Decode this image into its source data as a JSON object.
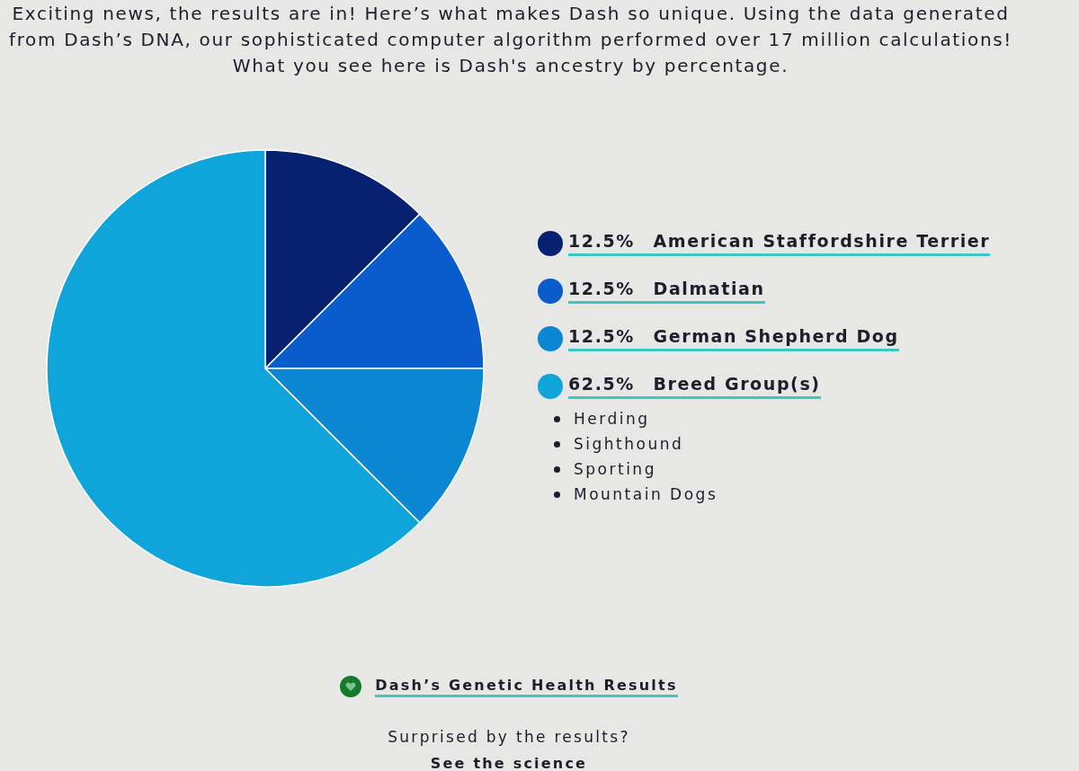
{
  "chart_data": {
    "type": "pie",
    "subtitle": "Exciting news, the results are in! Here’s what makes Dash so unique. Using the data generated from Dash’s DNA, our sophisticated computer algorithm performed over 17 million calculations!\nWhat you see here is Dash's ancestry by percentage.",
    "categories": [
      "American Staffordshire Terrier",
      "Dalmatian",
      "German Shepherd Dog",
      "Breed Group(s)"
    ],
    "values": [
      12.5,
      12.5,
      12.5,
      62.5
    ],
    "colors": [
      "#062170",
      "#0a5ccc",
      "#0a86d2",
      "#0fa5da"
    ],
    "value_labels": [
      "12.5%",
      "12.5%",
      "12.5%",
      "62.5%"
    ],
    "legend": "right",
    "annotations": [
      "Herding",
      "Sighthound",
      "Sporting",
      "Mountain Dogs",
      "Dash’s Genetic Health Results",
      "Surprised by the results?",
      "See the science"
    ]
  }
}
